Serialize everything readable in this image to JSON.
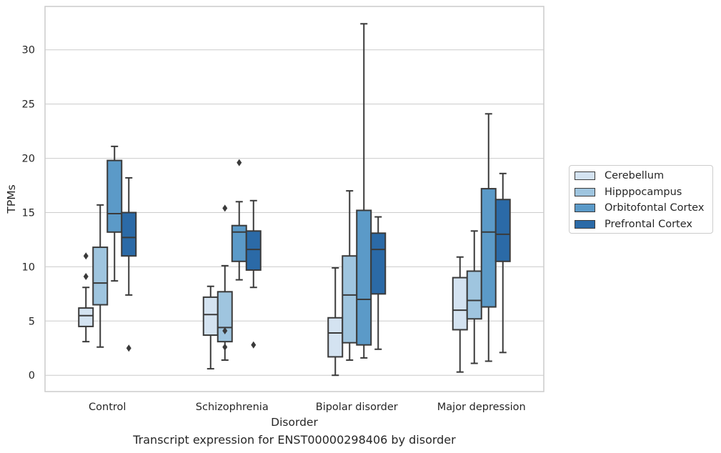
{
  "caption": "Transcript expression for ENST00000298406 by disorder",
  "chart_data": {
    "type": "box",
    "title": "",
    "xlabel": "Disorder",
    "ylabel": "TPMs",
    "categories": [
      "Control",
      "Schizophrenia",
      "Bipolar disorder",
      "Major depression"
    ],
    "ylim": [
      -1.5,
      34
    ],
    "yticks": [
      0,
      5,
      10,
      15,
      20,
      25,
      30
    ],
    "grid": "horizontal",
    "legend_position": "right",
    "series": [
      {
        "name": "Cerebellum",
        "color": "#d4e3f1",
        "boxes": [
          {
            "whisker_low": 3.1,
            "q1": 4.5,
            "median": 5.5,
            "q3": 6.2,
            "whisker_high": 8.1,
            "outliers": [
              9.1,
              11.0
            ]
          },
          {
            "whisker_low": 0.6,
            "q1": 3.7,
            "median": 5.6,
            "q3": 7.2,
            "whisker_high": 8.2,
            "outliers": []
          },
          {
            "whisker_low": 0.0,
            "q1": 1.7,
            "median": 3.9,
            "q3": 5.3,
            "whisker_high": 9.9,
            "outliers": []
          },
          {
            "whisker_low": 0.3,
            "q1": 4.2,
            "median": 6.0,
            "q3": 9.0,
            "whisker_high": 10.9,
            "outliers": []
          }
        ]
      },
      {
        "name": "Hipppocampus",
        "color": "#9fc5df",
        "boxes": [
          {
            "whisker_low": 2.6,
            "q1": 6.5,
            "median": 8.5,
            "q3": 11.8,
            "whisker_high": 15.7,
            "outliers": []
          },
          {
            "whisker_low": 1.4,
            "q1": 3.1,
            "median": 4.4,
            "q3": 7.7,
            "whisker_high": 10.1,
            "outliers": [
              15.4,
              4.1,
              2.6
            ]
          },
          {
            "whisker_low": 1.4,
            "q1": 3.0,
            "median": 7.4,
            "q3": 11.0,
            "whisker_high": 17.0,
            "outliers": []
          },
          {
            "whisker_low": 1.1,
            "q1": 5.2,
            "median": 6.9,
            "q3": 9.6,
            "whisker_high": 13.3,
            "outliers": []
          }
        ]
      },
      {
        "name": "Orbitofontal Cortex",
        "color": "#5b9ac8",
        "boxes": [
          {
            "whisker_low": 8.7,
            "q1": 13.2,
            "median": 14.9,
            "q3": 19.8,
            "whisker_high": 21.1,
            "outliers": []
          },
          {
            "whisker_low": 8.8,
            "q1": 10.5,
            "median": 13.2,
            "q3": 13.8,
            "whisker_high": 16.0,
            "outliers": [
              19.6
            ]
          },
          {
            "whisker_low": 1.6,
            "q1": 2.8,
            "median": 7.0,
            "q3": 15.2,
            "whisker_high": 32.4,
            "outliers": []
          },
          {
            "whisker_low": 1.3,
            "q1": 6.3,
            "median": 13.2,
            "q3": 17.2,
            "whisker_high": 24.1,
            "outliers": []
          }
        ]
      },
      {
        "name": "Prefrontal Cortex",
        "color": "#2b6aa7",
        "boxes": [
          {
            "whisker_low": 7.4,
            "q1": 11.0,
            "median": 12.7,
            "q3": 15.0,
            "whisker_high": 18.2,
            "outliers": [
              2.5
            ]
          },
          {
            "whisker_low": 8.1,
            "q1": 9.7,
            "median": 11.6,
            "q3": 13.3,
            "whisker_high": 16.1,
            "outliers": [
              2.8
            ]
          },
          {
            "whisker_low": 2.4,
            "q1": 7.5,
            "median": 11.6,
            "q3": 13.1,
            "whisker_high": 14.6,
            "outliers": []
          },
          {
            "whisker_low": 2.1,
            "q1": 10.5,
            "median": 13.0,
            "q3": 16.2,
            "whisker_high": 18.6,
            "outliers": []
          }
        ]
      }
    ]
  }
}
